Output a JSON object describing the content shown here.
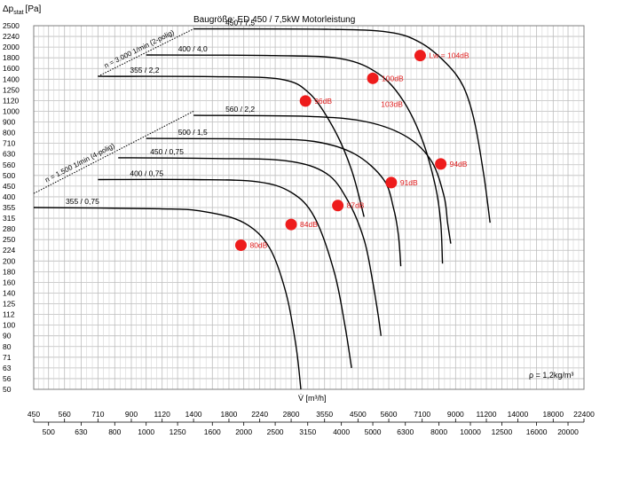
{
  "chart_data": {
    "type": "line",
    "title": "Baugröße: ED 450 / 7,5kW Motorleistung",
    "ylabel": "Δp",
    "ylabel_sub": "stat",
    "yunit": "[Pa]",
    "xlabel": "V̇ [m³/h]",
    "density_note": "ρ = 1,2kg/m³",
    "x_scale": "log",
    "y_scale": "log",
    "xlim": [
      450,
      22400
    ],
    "ylim": [
      50,
      2500
    ],
    "y_ticks": [
      "50",
      "56",
      "63",
      "71",
      "80",
      "90",
      "100",
      "112",
      "125",
      "140",
      "160",
      "180",
      "200",
      "224",
      "250",
      "280",
      "315",
      "355",
      "400",
      "450",
      "500",
      "560",
      "630",
      "710",
      "800",
      "900",
      "1000",
      "1120",
      "1250",
      "1400",
      "1600",
      "1800",
      "2000",
      "2240",
      "2500"
    ],
    "x_ticks_top": [
      "450",
      "560",
      "710",
      "900",
      "1120",
      "1400",
      "1800",
      "2240",
      "2800",
      "3550",
      "4500",
      "5600",
      "7100",
      "9000",
      "11200",
      "14000",
      "18000",
      "22400"
    ],
    "x_ticks_bottom": [
      "500",
      "630",
      "800",
      "1000",
      "1250",
      "1600",
      "2000",
      "2500",
      "3150",
      "4000",
      "5000",
      "6300",
      "8000",
      "10000",
      "12500",
      "16000",
      "20000"
    ],
    "speed_lines": [
      {
        "label": "n = 3.000 1/min (2-polig)",
        "points": [
          [
            710,
            1450
          ],
          [
            1400,
            2420
          ]
        ]
      },
      {
        "label": "n = 1.500 1/min (4-polig)",
        "points": [
          [
            450,
            415
          ],
          [
            1400,
            1000
          ]
        ]
      }
    ],
    "series": [
      {
        "name": "355 / 0,75",
        "points": [
          [
            450,
            355
          ],
          [
            1100,
            350
          ],
          [
            1500,
            340
          ],
          [
            2000,
            300
          ],
          [
            2400,
            230
          ],
          [
            2700,
            140
          ],
          [
            2900,
            80
          ],
          [
            3000,
            50
          ]
        ]
      },
      {
        "name": "400 / 0,75",
        "points": [
          [
            710,
            480
          ],
          [
            1400,
            480
          ],
          [
            2200,
            470
          ],
          [
            2800,
            420
          ],
          [
            3300,
            320
          ],
          [
            3800,
            180
          ],
          [
            4100,
            100
          ],
          [
            4300,
            63
          ]
        ]
      },
      {
        "name": "450 / 0,75",
        "points": [
          [
            820,
            605
          ],
          [
            1600,
            600
          ],
          [
            2700,
            585
          ],
          [
            3600,
            510
          ],
          [
            4200,
            380
          ],
          [
            4700,
            250
          ],
          [
            5000,
            160
          ],
          [
            5200,
            110
          ],
          [
            5300,
            90
          ]
        ]
      },
      {
        "name": "500 / 1,5",
        "points": [
          [
            1000,
            750
          ],
          [
            2200,
            745
          ],
          [
            3300,
            725
          ],
          [
            4400,
            630
          ],
          [
            5400,
            480
          ],
          [
            5800,
            350
          ],
          [
            6000,
            260
          ],
          [
            6100,
            190
          ]
        ]
      },
      {
        "name": "560 / 2,2",
        "points": [
          [
            1400,
            960
          ],
          [
            3200,
            950
          ],
          [
            4800,
            900
          ],
          [
            6400,
            760
          ],
          [
            7600,
            580
          ],
          [
            8300,
            400
          ],
          [
            8500,
            300
          ],
          [
            8700,
            240
          ]
        ]
      },
      {
        "name": "355 / 2,2",
        "points": [
          [
            710,
            1450
          ],
          [
            1600,
            1445
          ],
          [
            2600,
            1400
          ],
          [
            3200,
            1200
          ],
          [
            3800,
            830
          ],
          [
            4300,
            530
          ],
          [
            4700,
            320
          ]
        ]
      },
      {
        "name": "400 / 4,0",
        "points": [
          [
            1000,
            1850
          ],
          [
            2500,
            1840
          ],
          [
            4000,
            1780
          ],
          [
            5200,
            1500
          ],
          [
            6200,
            1120
          ],
          [
            7100,
            740
          ],
          [
            7800,
            450
          ],
          [
            8100,
            300
          ],
          [
            8200,
            195
          ]
        ]
      },
      {
        "name": "450 / 7,5",
        "points": [
          [
            1400,
            2420
          ],
          [
            3600,
            2410
          ],
          [
            5600,
            2340
          ],
          [
            7000,
            2100
          ],
          [
            8400,
            1700
          ],
          [
            9500,
            1300
          ],
          [
            10300,
            900
          ],
          [
            11000,
            500
          ],
          [
            11500,
            300
          ]
        ]
      }
    ],
    "operating_points": [
      {
        "label": "80dB",
        "x": 1960,
        "y": 236
      },
      {
        "label": "84dB",
        "x": 2800,
        "y": 294
      },
      {
        "label": "87dB",
        "x": 3900,
        "y": 363
      },
      {
        "label": "91dB",
        "x": 5700,
        "y": 466
      },
      {
        "label": "94dB",
        "x": 8100,
        "y": 565
      },
      {
        "label": "96dB",
        "x": 3100,
        "y": 1115
      },
      {
        "label": "100dB",
        "x": 5000,
        "y": 1415
      },
      {
        "label": "104dB",
        "x": 7000,
        "y": 1840
      }
    ],
    "lw_label": "Lw =",
    "extra_annotation": {
      "label": "103dB",
      "x": 5300,
      "y": 1080
    },
    "grid": true
  }
}
